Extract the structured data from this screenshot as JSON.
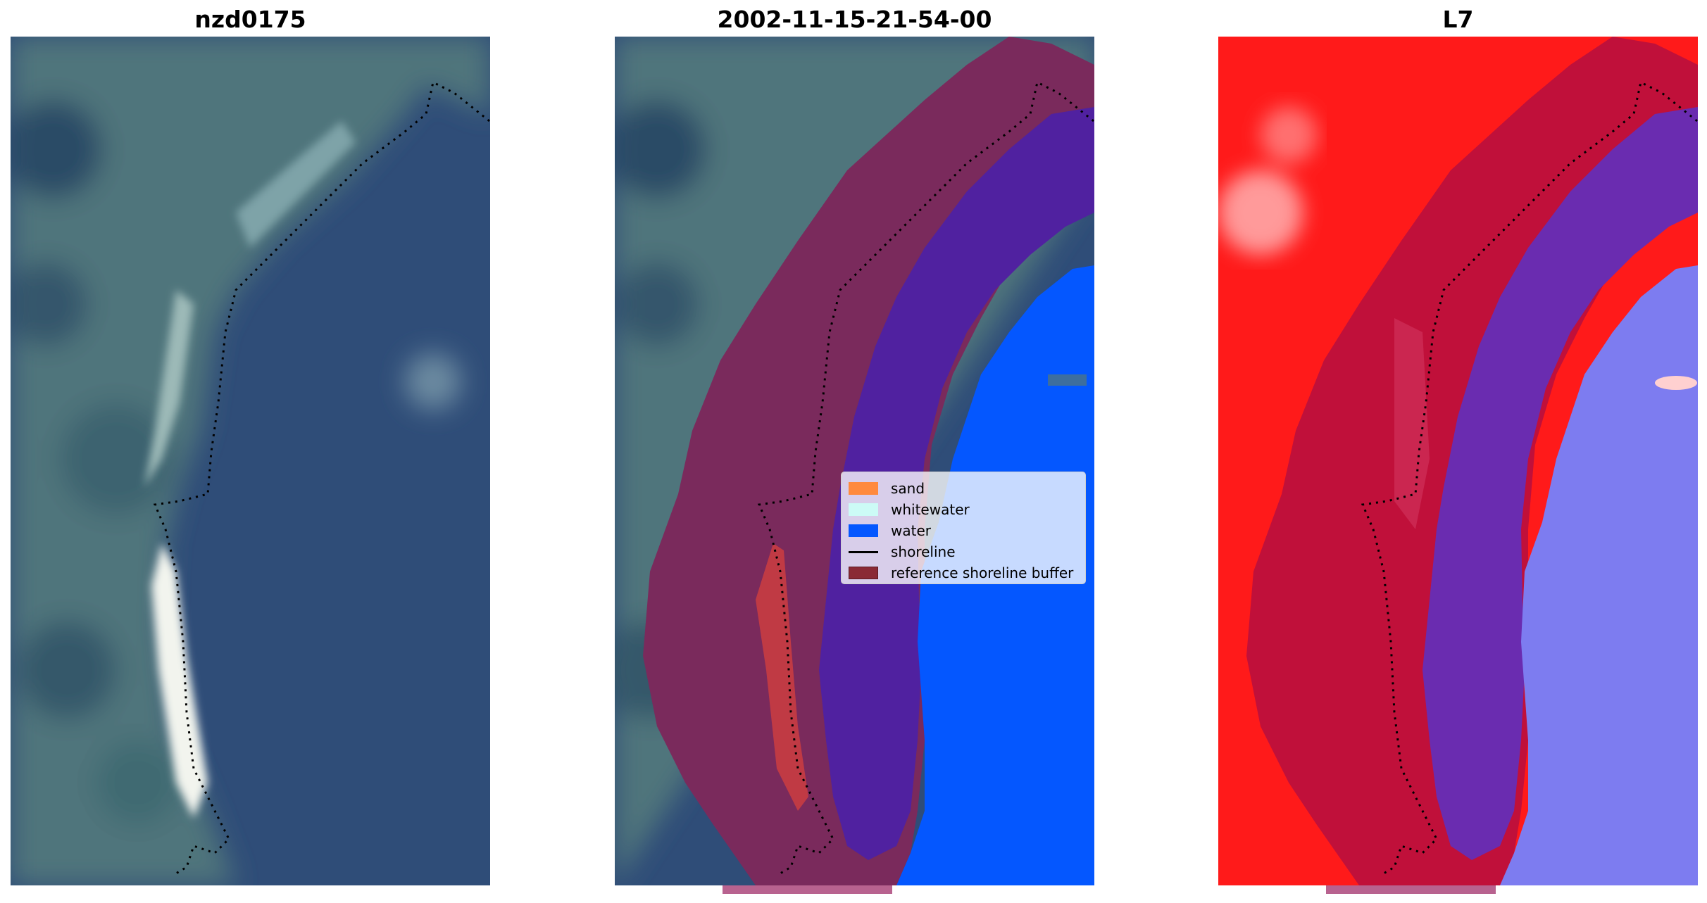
{
  "panels": [
    {
      "title": "nzd0175"
    },
    {
      "title": "2002-11-15-21-54-00"
    },
    {
      "title": "L7"
    }
  ],
  "legend": {
    "items": [
      {
        "label": "sand",
        "color": "#ff8a3d"
      },
      {
        "label": "whitewater",
        "color": "#ccfbf6"
      },
      {
        "label": "water",
        "color": "#0457ff"
      },
      {
        "label": "shoreline",
        "color": "#000000"
      },
      {
        "label": "reference shoreline buffer",
        "color": "#8a2a35"
      }
    ]
  },
  "colors": {
    "land_rgb": "#4a6f78",
    "sea_rgb": "#2f4d78",
    "buffer": "#7a2a5c",
    "water_class": "#5021a0",
    "open_water": "#0457ff",
    "sand_class": "#c03a44",
    "l7_land": "#ff1a1a",
    "l7_buffer": "#c0103a",
    "l7_water": "#6a2cb0",
    "l7_open": "#7d7cf0"
  }
}
